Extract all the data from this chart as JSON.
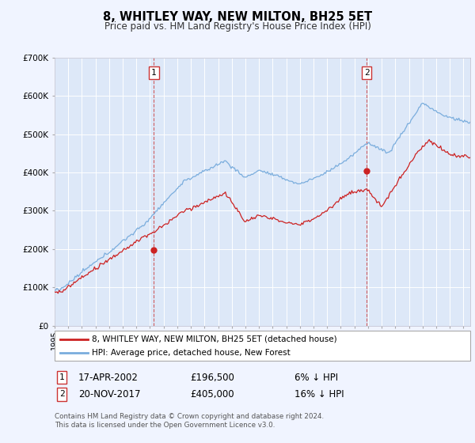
{
  "title": "8, WHITLEY WAY, NEW MILTON, BH25 5ET",
  "subtitle": "Price paid vs. HM Land Registry's House Price Index (HPI)",
  "background_color": "#f0f4ff",
  "plot_bg_color": "#dde8f8",
  "grid_color": "#ffffff",
  "ylim": [
    0,
    700000
  ],
  "yticks": [
    0,
    100000,
    200000,
    300000,
    400000,
    500000,
    600000,
    700000
  ],
  "ytick_labels": [
    "£0",
    "£100K",
    "£200K",
    "£300K",
    "£400K",
    "£500K",
    "£600K",
    "£700K"
  ],
  "xlim_start": 1995.0,
  "xlim_end": 2025.5,
  "hpi_color": "#7aaddd",
  "price_color": "#cc2222",
  "marker_color": "#cc2222",
  "sale1_x": 2002.29,
  "sale1_y": 196500,
  "sale2_x": 2017.89,
  "sale2_y": 405000,
  "vline1_x": 2002.29,
  "vline2_x": 2017.89,
  "legend_line1": "8, WHITLEY WAY, NEW MILTON, BH25 5ET (detached house)",
  "legend_line2": "HPI: Average price, detached house, New Forest",
  "sale1_date": "17-APR-2002",
  "sale1_price": "£196,500",
  "sale1_hpi": "6% ↓ HPI",
  "sale2_date": "20-NOV-2017",
  "sale2_price": "£405,000",
  "sale2_hpi": "16% ↓ HPI",
  "footer1": "Contains HM Land Registry data © Crown copyright and database right 2024.",
  "footer2": "This data is licensed under the Open Government Licence v3.0."
}
